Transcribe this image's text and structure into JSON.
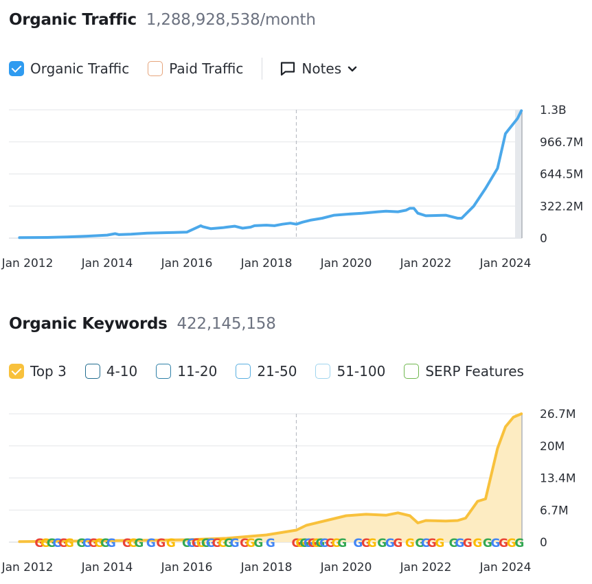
{
  "colors": {
    "organic_line": "#4ba8ea",
    "top3_line": "#f8c13c",
    "top3_fill": "#fdecc2",
    "grid": "#e3e5e8",
    "axis_text": "#2a2e35"
  },
  "traffic": {
    "title": "Organic Traffic",
    "value": "1,288,928,538/month",
    "legend": [
      {
        "label": "Organic Traffic",
        "color": "#2f9bf0",
        "checked": true
      },
      {
        "label": "Paid Traffic",
        "color": "#e6a47b",
        "checked": false
      }
    ],
    "notes_label": "Notes"
  },
  "keywords": {
    "title": "Organic Keywords",
    "value": "422,145,158",
    "legend": [
      {
        "label": "Top 3",
        "color": "#f8c13c",
        "checked": true
      },
      {
        "label": "4-10",
        "color": "#1f6b8e",
        "checked": false
      },
      {
        "label": "11-20",
        "color": "#2d7fa6",
        "checked": false
      },
      {
        "label": "21-50",
        "color": "#58aee0",
        "checked": false
      },
      {
        "label": "51-100",
        "color": "#9fd4ee",
        "checked": false
      },
      {
        "label": "SERP Features",
        "color": "#6fb74e",
        "checked": false
      }
    ]
  },
  "chart_data": [
    {
      "type": "line",
      "title": "Organic Traffic",
      "x_tick_labels": [
        "Jan 2012",
        "Jan 2014",
        "Jan 2016",
        "Jan 2018",
        "Jan 2020",
        "Jan 2022",
        "Jan 2024"
      ],
      "y_tick_labels": [
        "0",
        "322.2M",
        "644.5M",
        "966.7M",
        "1.3B"
      ],
      "ylim": [
        0,
        1289
      ],
      "y_unit": "M",
      "marker_year": 2018.75,
      "series": [
        {
          "name": "Organic Traffic",
          "x": [
            2011.8,
            2012.5,
            2013.0,
            2013.5,
            2014.0,
            2014.2,
            2014.3,
            2014.6,
            2015.0,
            2015.5,
            2016.0,
            2016.35,
            2016.4,
            2016.6,
            2016.9,
            2017.0,
            2017.2,
            2017.4,
            2017.6,
            2017.7,
            2018.0,
            2018.2,
            2018.4,
            2018.6,
            2018.75,
            2018.9,
            2019.1,
            2019.4,
            2019.7,
            2020.0,
            2020.4,
            2020.8,
            2021.0,
            2021.3,
            2021.5,
            2021.6,
            2021.7,
            2021.8,
            2022.0,
            2022.5,
            2022.8,
            2022.9,
            2023.2,
            2023.5,
            2023.8,
            2024.0,
            2024.1,
            2024.3,
            2024.4
          ],
          "y": [
            5,
            7,
            12,
            20,
            30,
            45,
            35,
            40,
            50,
            55,
            60,
            125,
            115,
            95,
            105,
            110,
            120,
            100,
            110,
            125,
            130,
            125,
            140,
            150,
            140,
            160,
            180,
            200,
            230,
            240,
            250,
            265,
            270,
            265,
            280,
            300,
            300,
            250,
            225,
            230,
            200,
            200,
            320,
            500,
            700,
            1050,
            1100,
            1200,
            1280
          ]
        }
      ]
    },
    {
      "type": "area",
      "title": "Organic Keywords",
      "x_tick_labels": [
        "Jan 2012",
        "Jan 2014",
        "Jan 2016",
        "Jan 2018",
        "Jan 2020",
        "Jan 2022",
        "Jan 2024"
      ],
      "y_tick_labels": [
        "0",
        "6.7M",
        "13.4M",
        "20M",
        "26.7M"
      ],
      "ylim": [
        0,
        26.7
      ],
      "y_unit": "M",
      "marker_year": 2018.75,
      "series": [
        {
          "name": "Top 3",
          "x": [
            2011.8,
            2013.0,
            2014.0,
            2015.0,
            2016.0,
            2017.0,
            2018.0,
            2018.75,
            2019.0,
            2019.5,
            2020.0,
            2020.5,
            2021.0,
            2021.3,
            2021.6,
            2021.8,
            2022.0,
            2022.5,
            2022.8,
            2023.0,
            2023.3,
            2023.5,
            2023.8,
            2024.0,
            2024.2,
            2024.4
          ],
          "y": [
            0.1,
            0.2,
            0.3,
            0.4,
            0.5,
            0.8,
            1.5,
            2.5,
            3.5,
            4.5,
            5.5,
            5.8,
            5.6,
            6.1,
            5.5,
            4.0,
            4.5,
            4.4,
            4.5,
            5.0,
            8.5,
            9.0,
            19.5,
            24.0,
            26.0,
            26.7
          ]
        }
      ],
      "serp_marker_label": "G",
      "serp_marker_years": [
        2012.3,
        2012.45,
        2012.6,
        2012.75,
        2012.9,
        2013.05,
        2013.35,
        2013.5,
        2013.65,
        2013.8,
        2013.95,
        2014.1,
        2014.5,
        2014.65,
        2014.8,
        2015.1,
        2015.35,
        2015.6,
        2016.0,
        2016.12,
        2016.24,
        2016.36,
        2016.48,
        2016.6,
        2016.75,
        2016.9,
        2017.05,
        2017.2,
        2017.45,
        2017.6,
        2017.8,
        2018.1,
        2018.75,
        2018.85,
        2018.95,
        2019.05,
        2019.15,
        2019.25,
        2019.35,
        2019.45,
        2019.6,
        2019.75,
        2019.9,
        2020.3,
        2020.5,
        2020.65,
        2020.9,
        2021.1,
        2021.3,
        2021.6,
        2021.85,
        2022.0,
        2022.15,
        2022.35,
        2022.7,
        2022.85,
        2023.05,
        2023.3,
        2023.55,
        2023.75,
        2023.95,
        2024.15,
        2024.35
      ]
    }
  ]
}
